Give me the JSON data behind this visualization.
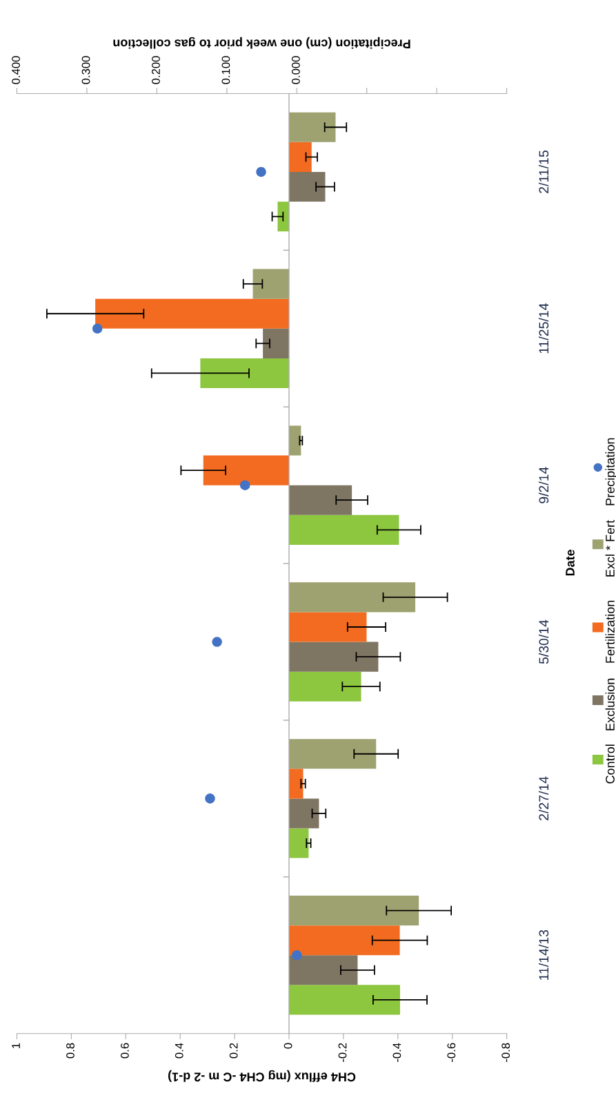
{
  "chart_data": {
    "type": "bar",
    "orientation": "horizontal",
    "xlabel": "CH4 efflux (mg CH4 -C m -2 d-1)",
    "ylabel": "Date",
    "x2label": "Precipitation (cm) one week prior to gas collection",
    "categories": [
      "2/11/15",
      "11/25/14",
      "9/2/14",
      "5/30/14",
      "2/27/14",
      "11/14/13"
    ],
    "series": [
      {
        "name": "Control",
        "color": "#8dc63f",
        "values": [
          0.042,
          0.326,
          -0.404,
          -0.265,
          -0.072,
          -0.408
        ],
        "errors": [
          0.02,
          0.179,
          0.08,
          0.069,
          0.008,
          0.099
        ]
      },
      {
        "name": "Exclusion",
        "color": "#7f7563",
        "values": [
          -0.133,
          0.096,
          -0.231,
          -0.328,
          -0.11,
          -0.252
        ],
        "errors": [
          0.034,
          0.025,
          0.058,
          0.081,
          0.025,
          0.062
        ]
      },
      {
        "name": "Fertilization",
        "color": "#f26b21",
        "values": [
          -0.083,
          0.712,
          0.315,
          -0.285,
          -0.052,
          -0.407
        ],
        "errors": [
          0.021,
          0.178,
          0.082,
          0.07,
          0.008,
          0.101
        ]
      },
      {
        "name": "Excl * Fert",
        "color": "#9ea270",
        "values": [
          -0.171,
          0.133,
          -0.044,
          -0.464,
          -0.32,
          -0.477
        ],
        "errors": [
          0.04,
          0.035,
          0.005,
          0.118,
          0.081,
          0.119
        ]
      },
      {
        "name": "Precipitation",
        "type": "scatter",
        "axis": "x2",
        "marker": "circle",
        "color": "#4472c4",
        "values": [
          0.051,
          0.285,
          0.074,
          0.114,
          0.124,
          0.0
        ]
      }
    ],
    "xlim": [
      1,
      -0.8
    ],
    "xticks": [
      1,
      0.8,
      0.6,
      0.4,
      0.2,
      0,
      -0.2,
      -0.4,
      -0.6,
      -0.8
    ],
    "x2lim": [
      0.4,
      -0.3
    ],
    "x2ticks": [
      {
        "value": 0.4,
        "label": "0.400"
      },
      {
        "value": 0.3,
        "label": "0.300"
      },
      {
        "value": 0.2,
        "label": "0.200"
      },
      {
        "value": 0.1,
        "label": "0.100"
      },
      {
        "value": 0.0,
        "label": "0.000"
      },
      {
        "value": -0.1,
        "label": null
      },
      {
        "value": -0.2,
        "label": null
      },
      {
        "value": -0.3,
        "label": null
      }
    ],
    "ref_lines": [
      {
        "axis": "x",
        "value": 0,
        "color": "#aaaaaa"
      }
    ],
    "grid": false,
    "legend": "right"
  }
}
